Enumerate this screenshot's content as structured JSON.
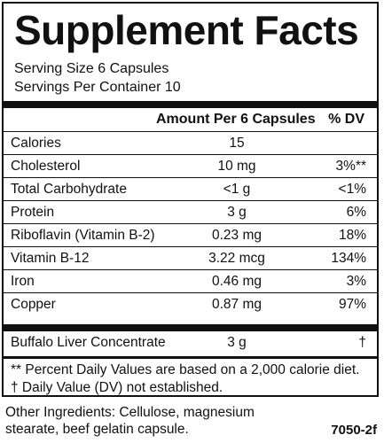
{
  "label": {
    "title": "Supplement Facts",
    "serving_size": "Serving Size 6 Capsules",
    "servings_per_container": "Servings Per Container 10",
    "header_amount": "Amount Per 6 Capsules",
    "header_dv": "% DV",
    "rows": [
      {
        "name": "Calories",
        "amount": "15",
        "dv": ""
      },
      {
        "name": "Cholesterol",
        "amount": "10 mg",
        "dv": "3%**"
      },
      {
        "name": "Total Carbohydrate",
        "amount": "<1 g",
        "dv": "<1%"
      },
      {
        "name": "Protein",
        "amount": "3 g",
        "dv": "6%"
      },
      {
        "name": "Riboflavin (Vitamin B-2)",
        "amount": "0.23 mg",
        "dv": "18%"
      },
      {
        "name": "Vitamin B-12",
        "amount": "3.22 mcg",
        "dv": "134%"
      },
      {
        "name": "Iron",
        "amount": "0.46 mg",
        "dv": "3%"
      },
      {
        "name": "Copper",
        "amount": "0.87 mg",
        "dv": "97%"
      },
      {
        "name": "Buffalo Liver Concentrate",
        "amount": "3 g",
        "dv": "†"
      }
    ],
    "footnote_1": "** Percent Daily Values are based on a 2,000 calorie diet.",
    "footnote_2": "† Daily Value (DV) not established."
  },
  "other_ingredients": "Other Ingredients:  Cellulose, magnesium stearate, beef gelatin capsule.",
  "product_code": "7050-2f"
}
